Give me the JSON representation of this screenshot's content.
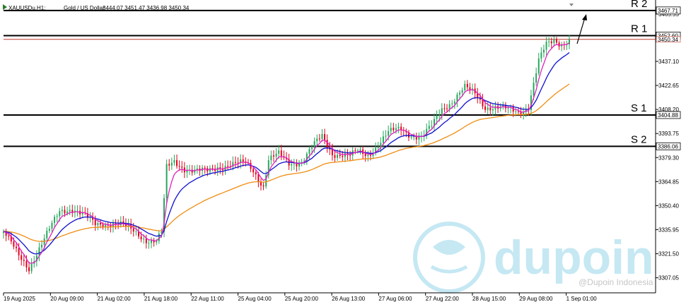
{
  "header": {
    "symbol": "XAUUSDu,H1:",
    "description": "Gold / US Dollar",
    "ohlc": "3444.07 3451.47 3436.98 3450.34"
  },
  "watermark": {
    "brand": "dupoin",
    "handle": "@Dupoin Indonesia",
    "color": "#5bc0de"
  },
  "chart_data": {
    "type": "candlestick",
    "timeframe": "H1",
    "ylim": [
      3298,
      3474
    ],
    "y_ticks": [
      "3465.55",
      "3437.10",
      "3422.65",
      "3408.20",
      "3393.75",
      "3379.30",
      "3364.85",
      "3350.40",
      "3335.95",
      "3321.50",
      "3307.05"
    ],
    "x_ticks": [
      "19 Aug 2025",
      "20 Aug 09:00",
      "21 Aug 02:00",
      "21 Aug 18:00",
      "22 Aug 11:00",
      "25 Aug 04:00",
      "25 Aug 20:00",
      "26 Aug 13:00",
      "27 Aug 06:00",
      "27 Aug 22:00",
      "28 Aug 15:00",
      "29 Aug 08:00",
      "1 Sep 01:00"
    ],
    "levels": [
      {
        "name": "R 2",
        "price": 3467.71,
        "label": "3467.71",
        "color": "#000000"
      },
      {
        "name": "R 1",
        "price": 3452.6,
        "label": "3452.60",
        "color": "#000000"
      },
      {
        "name": "S 1",
        "price": 3404.88,
        "label": "3404.88",
        "color": "#000000"
      },
      {
        "name": "S 2",
        "price": 3386.06,
        "label": "3386.06",
        "color": "#000000"
      }
    ],
    "current_price": {
      "price": 3450.34,
      "label": "3450.34",
      "color": "#c0392b"
    },
    "colors": {
      "bull": "#26a65b",
      "bear": "#e0001b",
      "ma_fast": "#e020c0",
      "ma_mid": "#1010d0",
      "ma_slow": "#f08c10"
    },
    "anchors": [
      {
        "i": 0,
        "p": 3335
      },
      {
        "i": 6,
        "p": 3320
      },
      {
        "i": 10,
        "p": 3313
      },
      {
        "i": 13,
        "p": 3322
      },
      {
        "i": 17,
        "p": 3333
      },
      {
        "i": 22,
        "p": 3347
      },
      {
        "i": 27,
        "p": 3349
      },
      {
        "i": 32,
        "p": 3344
      },
      {
        "i": 36,
        "p": 3339
      },
      {
        "i": 42,
        "p": 3340
      },
      {
        "i": 46,
        "p": 3339
      },
      {
        "i": 51,
        "p": 3335
      },
      {
        "i": 56,
        "p": 3330
      },
      {
        "i": 60,
        "p": 3329
      },
      {
        "i": 62,
        "p": 3334
      },
      {
        "i": 64,
        "p": 3373
      },
      {
        "i": 67,
        "p": 3377
      },
      {
        "i": 71,
        "p": 3373
      },
      {
        "i": 75,
        "p": 3371
      },
      {
        "i": 80,
        "p": 3371
      },
      {
        "i": 84,
        "p": 3374
      },
      {
        "i": 90,
        "p": 3375
      },
      {
        "i": 95,
        "p": 3376
      },
      {
        "i": 98,
        "p": 3372
      },
      {
        "i": 102,
        "p": 3362
      },
      {
        "i": 104,
        "p": 3378
      },
      {
        "i": 108,
        "p": 3381
      },
      {
        "i": 112,
        "p": 3376
      },
      {
        "i": 117,
        "p": 3377
      },
      {
        "i": 122,
        "p": 3387
      },
      {
        "i": 125,
        "p": 3392
      },
      {
        "i": 129,
        "p": 3382
      },
      {
        "i": 133,
        "p": 3381
      },
      {
        "i": 136,
        "p": 3380
      },
      {
        "i": 139,
        "p": 3383
      },
      {
        "i": 143,
        "p": 3381
      },
      {
        "i": 147,
        "p": 3387
      },
      {
        "i": 151,
        "p": 3394
      },
      {
        "i": 156,
        "p": 3397
      },
      {
        "i": 160,
        "p": 3393
      },
      {
        "i": 164,
        "p": 3391
      },
      {
        "i": 168,
        "p": 3398
      },
      {
        "i": 172,
        "p": 3409
      },
      {
        "i": 176,
        "p": 3413
      },
      {
        "i": 181,
        "p": 3421
      },
      {
        "i": 185,
        "p": 3418
      },
      {
        "i": 189,
        "p": 3410
      },
      {
        "i": 193,
        "p": 3409
      },
      {
        "i": 198,
        "p": 3408
      },
      {
        "i": 203,
        "p": 3407
      },
      {
        "i": 206,
        "p": 3410
      },
      {
        "i": 210,
        "p": 3437
      },
      {
        "i": 213,
        "p": 3447
      },
      {
        "i": 216,
        "p": 3450
      },
      {
        "i": 219,
        "p": 3448
      },
      {
        "i": 222,
        "p": 3450
      }
    ]
  }
}
